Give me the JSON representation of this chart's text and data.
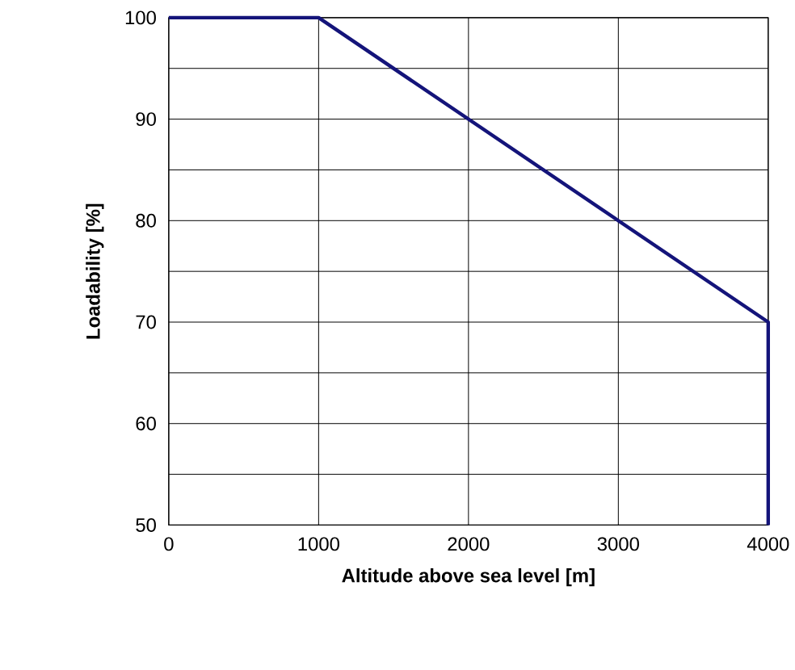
{
  "chart_data": {
    "type": "line",
    "xlabel": "Altitude above sea level [m]",
    "ylabel": "Loadability [%]",
    "xlim": [
      0,
      4000
    ],
    "ylim": [
      50,
      100
    ],
    "xticks": [
      0,
      1000,
      2000,
      3000,
      4000
    ],
    "yticks": [
      50,
      {
        "value": 55,
        "label": null
      },
      60,
      {
        "value": 65,
        "label": null
      },
      70,
      {
        "value": 75,
        "label": null
      },
      80,
      {
        "value": 85,
        "label": null
      },
      90,
      {
        "value": 95,
        "label": null
      },
      100
    ],
    "grid": true,
    "line_style": "solid",
    "marker": "none",
    "series": [
      {
        "color": "#14147a",
        "x": [
          0,
          1000,
          4000,
          4000
        ],
        "values": [
          100,
          100,
          70,
          50
        ]
      }
    ]
  }
}
